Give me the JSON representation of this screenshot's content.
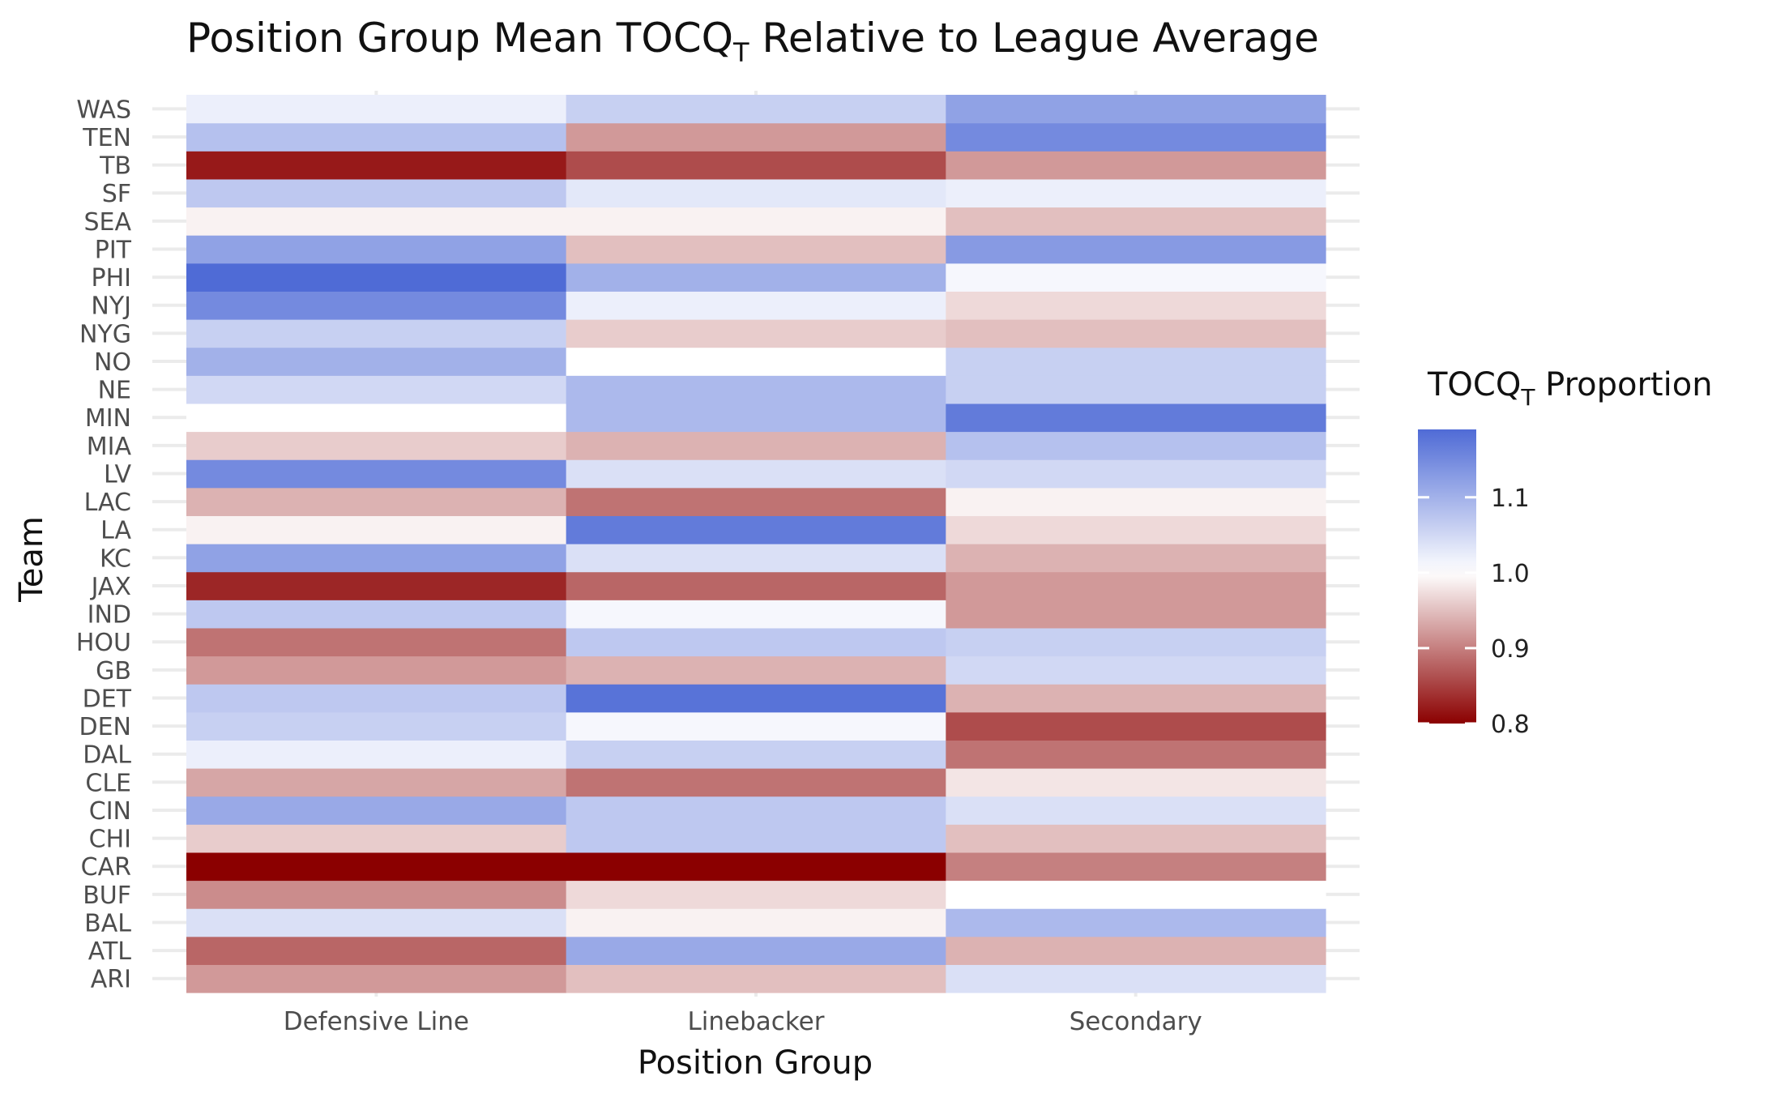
{
  "chart_data": {
    "type": "heatmap",
    "title": "Position Group Mean TOCQ",
    "title_subscript": "T",
    "title_suffix": " Relative to League Average",
    "xlabel": "Position Group",
    "ylabel": "Team",
    "x_categories": [
      "Defensive Line",
      "Linebacker",
      "Secondary"
    ],
    "y_categories": [
      "ARI",
      "ATL",
      "BAL",
      "BUF",
      "CAR",
      "CHI",
      "CIN",
      "CLE",
      "DAL",
      "DEN",
      "DET",
      "GB",
      "HOU",
      "IND",
      "JAX",
      "KC",
      "LA",
      "LAC",
      "LV",
      "MIA",
      "MIN",
      "NE",
      "NO",
      "NYG",
      "NYJ",
      "PHI",
      "PIT",
      "SEA",
      "SF",
      "TB",
      "TEN",
      "WAS"
    ],
    "values": {
      "WAS": [
        1.02,
        1.06,
        1.12
      ],
      "TEN": [
        1.08,
        0.92,
        1.15
      ],
      "TB": [
        0.82,
        0.86,
        0.92
      ],
      "SF": [
        1.07,
        1.03,
        1.02
      ],
      "SEA": [
        0.99,
        0.99,
        0.95
      ],
      "PIT": [
        1.12,
        0.95,
        1.13
      ],
      "PHI": [
        1.19,
        1.1,
        1.01
      ],
      "NYJ": [
        1.15,
        1.02,
        0.97
      ],
      "NYG": [
        1.06,
        0.96,
        0.95
      ],
      "NO": [
        1.1,
        1.0,
        1.06
      ],
      "NE": [
        1.05,
        1.09,
        1.06
      ],
      "MIN": [
        1.0,
        1.09,
        1.17
      ],
      "MIA": [
        0.96,
        0.94,
        1.08
      ],
      "LV": [
        1.15,
        1.04,
        1.05
      ],
      "LAC": [
        0.94,
        0.89,
        0.99
      ],
      "LA": [
        0.99,
        1.17,
        0.97
      ],
      "KC": [
        1.12,
        1.04,
        0.94
      ],
      "JAX": [
        0.83,
        0.88,
        0.92
      ],
      "IND": [
        1.07,
        1.01,
        0.92
      ],
      "HOU": [
        0.89,
        1.07,
        1.06
      ],
      "GB": [
        0.92,
        0.94,
        1.05
      ],
      "DET": [
        1.07,
        1.18,
        0.94
      ],
      "DEN": [
        1.06,
        1.01,
        0.86
      ],
      "DAL": [
        1.02,
        1.06,
        0.89
      ],
      "CLE": [
        0.93,
        0.89,
        0.98
      ],
      "CIN": [
        1.11,
        1.07,
        1.04
      ],
      "CHI": [
        0.96,
        1.07,
        0.95
      ],
      "CAR": [
        0.8,
        0.8,
        0.9
      ],
      "BUF": [
        0.91,
        0.97,
        1.0
      ],
      "BAL": [
        1.04,
        0.99,
        1.09
      ],
      "ATL": [
        0.88,
        1.11,
        0.94
      ],
      "ARI": [
        0.92,
        0.95,
        1.04
      ]
    },
    "legend": {
      "title": "TOCQ",
      "title_subscript": "T",
      "title_suffix": " Proportion",
      "ticks": [
        "1.1",
        "1.0",
        "0.9",
        "0.8"
      ],
      "tick_values": [
        1.1,
        1.0,
        0.9,
        0.8
      ],
      "min": 0.8,
      "max": 1.19,
      "midpoint": 1.0,
      "low_color": "#8b0000",
      "mid_color": "#ffffff",
      "high_color": "#4f6bd6",
      "placement": "right"
    },
    "grid": true
  }
}
